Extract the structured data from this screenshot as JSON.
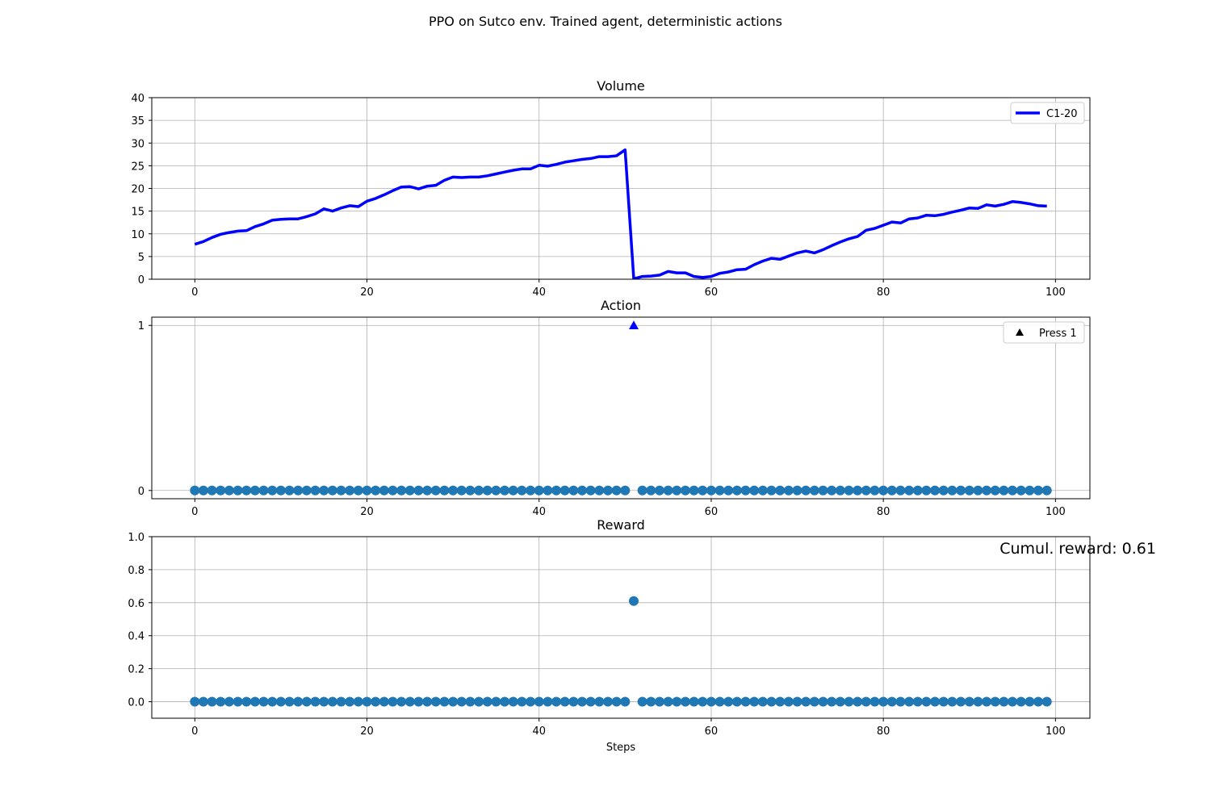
{
  "figure": {
    "title": "PPO on Sutco env. Trained agent, deterministic actions"
  },
  "chart_data": [
    {
      "type": "line",
      "title": "Volume",
      "xlabel": "",
      "ylabel": "",
      "xlim": [
        -5,
        104
      ],
      "ylim": [
        0,
        40
      ],
      "xticks": [
        0,
        20,
        40,
        60,
        80,
        100
      ],
      "yticks": [
        0,
        5,
        10,
        15,
        20,
        25,
        30,
        35,
        40
      ],
      "grid": true,
      "legend": {
        "placement": "upper right",
        "entries": [
          {
            "label": "C1-20",
            "marker": "line",
            "color": "#0000ff"
          }
        ]
      },
      "series": [
        {
          "name": "C1-20",
          "color": "#0000ff",
          "x": [
            0,
            1,
            2,
            3,
            4,
            5,
            6,
            7,
            8,
            9,
            10,
            11,
            12,
            13,
            14,
            15,
            16,
            17,
            18,
            19,
            20,
            21,
            22,
            23,
            24,
            25,
            26,
            27,
            28,
            29,
            30,
            31,
            32,
            33,
            34,
            35,
            36,
            37,
            38,
            39,
            40,
            41,
            42,
            43,
            44,
            45,
            46,
            47,
            48,
            49,
            50,
            51,
            52,
            53,
            54,
            55,
            56,
            57,
            58,
            59,
            60,
            61,
            62,
            63,
            64,
            65,
            66,
            67,
            68,
            69,
            70,
            71,
            72,
            73,
            74,
            75,
            76,
            77,
            78,
            79,
            80,
            81,
            82,
            83,
            84,
            85,
            86,
            87,
            88,
            89,
            90,
            91,
            92,
            93,
            94,
            95,
            96,
            97,
            98,
            99
          ],
          "values": [
            7.7,
            8.3,
            9.2,
            9.9,
            10.3,
            10.6,
            10.7,
            11.6,
            12.2,
            13.0,
            13.2,
            13.3,
            13.3,
            13.8,
            14.4,
            15.5,
            15.0,
            15.7,
            16.2,
            16.0,
            17.2,
            17.8,
            18.6,
            19.5,
            20.3,
            20.4,
            19.9,
            20.5,
            20.7,
            21.8,
            22.5,
            22.4,
            22.5,
            22.5,
            22.8,
            23.2,
            23.6,
            24.0,
            24.3,
            24.3,
            25.1,
            24.9,
            25.3,
            25.8,
            26.1,
            26.4,
            26.6,
            27.0,
            27.0,
            27.2,
            28.5,
            0.1,
            0.6,
            0.7,
            0.9,
            1.7,
            1.4,
            1.4,
            0.6,
            0.4,
            0.6,
            1.3,
            1.6,
            2.1,
            2.2,
            3.2,
            4.0,
            4.6,
            4.4,
            5.1,
            5.8,
            6.2,
            5.8,
            6.5,
            7.4,
            8.2,
            8.9,
            9.4,
            10.8,
            11.2,
            11.9,
            12.6,
            12.4,
            13.3,
            13.5,
            14.1,
            14.0,
            14.3,
            14.8,
            15.2,
            15.7,
            15.6,
            16.4,
            16.1,
            16.5,
            17.1,
            16.9,
            16.6,
            16.2,
            16.1
          ]
        }
      ]
    },
    {
      "type": "scatter",
      "title": "Action",
      "xlabel": "",
      "ylabel": "",
      "xlim": [
        -5,
        104
      ],
      "ylim": [
        -0.05,
        1.05
      ],
      "xticks": [
        0,
        20,
        40,
        60,
        80,
        100
      ],
      "yticks": [
        0,
        1
      ],
      "grid": true,
      "legend": {
        "placement": "upper right",
        "entries": [
          {
            "label": "Press 1",
            "marker": "triangle",
            "color": "#000000"
          }
        ]
      },
      "series": [
        {
          "color": "#1f77b4",
          "marker": "circle",
          "x": [
            0,
            1,
            2,
            3,
            4,
            5,
            6,
            7,
            8,
            9,
            10,
            11,
            12,
            13,
            14,
            15,
            16,
            17,
            18,
            19,
            20,
            21,
            22,
            23,
            24,
            25,
            26,
            27,
            28,
            29,
            30,
            31,
            32,
            33,
            34,
            35,
            36,
            37,
            38,
            39,
            40,
            41,
            42,
            43,
            44,
            45,
            46,
            47,
            48,
            49,
            50,
            52,
            53,
            54,
            55,
            56,
            57,
            58,
            59,
            60,
            61,
            62,
            63,
            64,
            65,
            66,
            67,
            68,
            69,
            70,
            71,
            72,
            73,
            74,
            75,
            76,
            77,
            78,
            79,
            80,
            81,
            82,
            83,
            84,
            85,
            86,
            87,
            88,
            89,
            90,
            91,
            92,
            93,
            94,
            95,
            96,
            97,
            98,
            99
          ],
          "values": [
            0,
            0,
            0,
            0,
            0,
            0,
            0,
            0,
            0,
            0,
            0,
            0,
            0,
            0,
            0,
            0,
            0,
            0,
            0,
            0,
            0,
            0,
            0,
            0,
            0,
            0,
            0,
            0,
            0,
            0,
            0,
            0,
            0,
            0,
            0,
            0,
            0,
            0,
            0,
            0,
            0,
            0,
            0,
            0,
            0,
            0,
            0,
            0,
            0,
            0,
            0,
            0,
            0,
            0,
            0,
            0,
            0,
            0,
            0,
            0,
            0,
            0,
            0,
            0,
            0,
            0,
            0,
            0,
            0,
            0,
            0,
            0,
            0,
            0,
            0,
            0,
            0,
            0,
            0,
            0,
            0,
            0,
            0,
            0,
            0,
            0,
            0,
            0,
            0,
            0,
            0,
            0,
            0,
            0,
            0,
            0,
            0,
            0,
            0
          ]
        },
        {
          "name": "Press 1",
          "color": "#0000ff",
          "marker": "triangle",
          "x": [
            51
          ],
          "values": [
            1
          ]
        }
      ]
    },
    {
      "type": "scatter",
      "title": "Reward",
      "xlabel": "Steps",
      "ylabel": "",
      "xlim": [
        -5,
        104
      ],
      "ylim": [
        -0.1,
        1.0
      ],
      "xticks": [
        0,
        20,
        40,
        60,
        80,
        100
      ],
      "yticks": [
        0.0,
        0.2,
        0.4,
        0.6,
        0.8,
        1.0
      ],
      "ytick_labels": [
        "0.0",
        "0.2",
        "0.4",
        "0.6",
        "0.8",
        "1.0"
      ],
      "grid": true,
      "annotation": "Cumul. reward: 0.61",
      "series": [
        {
          "color": "#1f77b4",
          "marker": "circle",
          "x": [
            0,
            1,
            2,
            3,
            4,
            5,
            6,
            7,
            8,
            9,
            10,
            11,
            12,
            13,
            14,
            15,
            16,
            17,
            18,
            19,
            20,
            21,
            22,
            23,
            24,
            25,
            26,
            27,
            28,
            29,
            30,
            31,
            32,
            33,
            34,
            35,
            36,
            37,
            38,
            39,
            40,
            41,
            42,
            43,
            44,
            45,
            46,
            47,
            48,
            49,
            50,
            51,
            52,
            53,
            54,
            55,
            56,
            57,
            58,
            59,
            60,
            61,
            62,
            63,
            64,
            65,
            66,
            67,
            68,
            69,
            70,
            71,
            72,
            73,
            74,
            75,
            76,
            77,
            78,
            79,
            80,
            81,
            82,
            83,
            84,
            85,
            86,
            87,
            88,
            89,
            90,
            91,
            92,
            93,
            94,
            95,
            96,
            97,
            98,
            99
          ],
          "values": [
            0,
            0,
            0,
            0,
            0,
            0,
            0,
            0,
            0,
            0,
            0,
            0,
            0,
            0,
            0,
            0,
            0,
            0,
            0,
            0,
            0,
            0,
            0,
            0,
            0,
            0,
            0,
            0,
            0,
            0,
            0,
            0,
            0,
            0,
            0,
            0,
            0,
            0,
            0,
            0,
            0,
            0,
            0,
            0,
            0,
            0,
            0,
            0,
            0,
            0,
            0,
            0.61,
            0,
            0,
            0,
            0,
            0,
            0,
            0,
            0,
            0,
            0,
            0,
            0,
            0,
            0,
            0,
            0,
            0,
            0,
            0,
            0,
            0,
            0,
            0,
            0,
            0,
            0,
            0,
            0,
            0,
            0,
            0,
            0,
            0,
            0,
            0,
            0,
            0,
            0,
            0,
            0,
            0,
            0,
            0,
            0,
            0,
            0,
            0,
            0
          ]
        }
      ]
    }
  ]
}
